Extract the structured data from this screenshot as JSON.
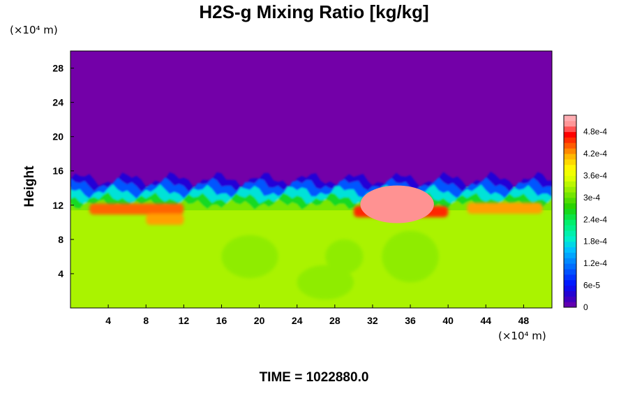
{
  "chart_data": {
    "type": "heatmap",
    "title": "H2S-g Mixing Ratio [kg/kg]",
    "ylabel": "Height",
    "xlabel": "",
    "x_unit": "(×10⁴ m)",
    "y_unit": "(×10⁴ m)",
    "xlim": [
      0,
      51
    ],
    "ylim": [
      0,
      30
    ],
    "x_ticks": [
      4,
      8,
      12,
      16,
      20,
      24,
      28,
      32,
      36,
      40,
      44,
      48
    ],
    "y_ticks": [
      4,
      8,
      12,
      16,
      20,
      24,
      28
    ],
    "colorbar": {
      "min": 0,
      "max": 0.000525,
      "tick_labels": [
        "0",
        "6e-5",
        "1.2e-4",
        "1.8e-4",
        "2.4e-4",
        "3e-4",
        "3.6e-4",
        "4.2e-4",
        "4.8e-4"
      ],
      "tick_values": [
        0,
        6e-05,
        0.00012,
        0.00018,
        0.00024,
        0.0003,
        0.00036,
        0.00042,
        0.00048
      ]
    },
    "layers": {
      "upper_value": 0,
      "lower_value": 0.00033,
      "interface_height": 14,
      "max_region_value": 0.0005
    },
    "footer": "TIME = 1022880.0"
  }
}
